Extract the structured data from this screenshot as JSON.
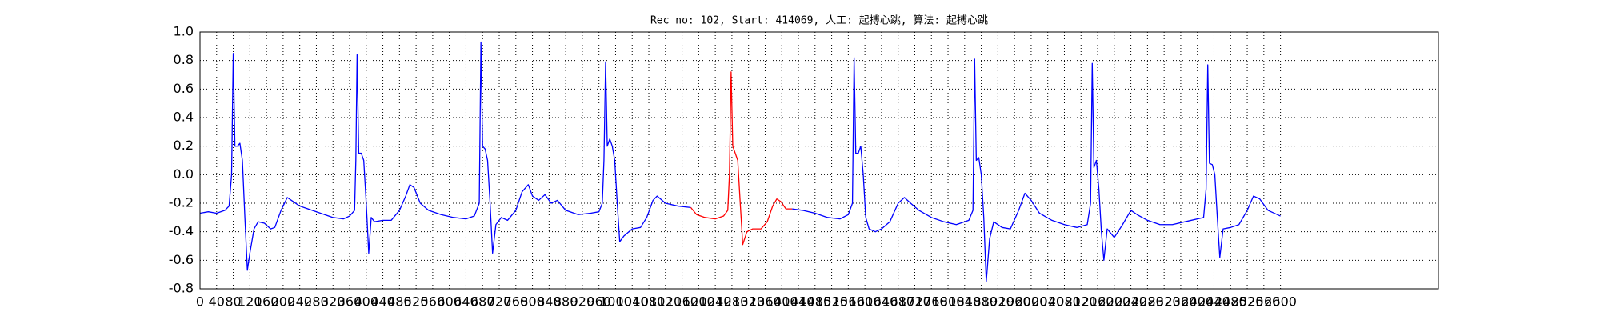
{
  "chart_data": {
    "type": "line",
    "title": "Rec_no: 102, Start: 414069, 人工: 起搏心跳, 算法: 起搏心跳",
    "xlim": [
      0,
      2980
    ],
    "ylim": [
      -0.8,
      1.0
    ],
    "xticks": [
      0,
      40,
      80,
      120,
      160,
      200,
      240,
      280,
      320,
      360,
      400,
      440,
      480,
      520,
      560,
      600,
      640,
      680,
      720,
      760,
      800,
      840,
      880,
      920,
      960,
      1000,
      1040,
      1080,
      1120,
      1160,
      1200,
      1240,
      1280,
      1320,
      1360,
      1400,
      1440,
      1480,
      1520,
      1560,
      1600,
      1640,
      1680,
      1720,
      1760,
      1800,
      1840,
      1880,
      1920,
      1960,
      2000,
      2040,
      2080,
      2120,
      2160,
      2200,
      2240,
      2280,
      2320,
      2360,
      2400,
      2440,
      2480,
      2520,
      2560,
      2600
    ],
    "yticks": [
      -0.8,
      -0.6,
      -0.4,
      -0.2,
      {
        "value": 0,
        "label": "0.0"
      },
      0.2,
      0.4,
      0.6,
      0.8,
      {
        "value": 1,
        "label": "1.0"
      }
    ],
    "grid": true,
    "series": [
      {
        "color": "#0000ff",
        "x": [
          0,
          20,
          40,
          60,
          70,
          76,
          80,
          84,
          90,
          96,
          102,
          108,
          114,
          120,
          130,
          140,
          155,
          170,
          180,
          195,
          210,
          225,
          240,
          260,
          290,
          320,
          345,
          360,
          372,
          375,
          378,
          382,
          388,
          394,
          400,
          406,
          412,
          420,
          440,
          460,
          480,
          495,
          505,
          515,
          530,
          550,
          580,
          610,
          640,
          660,
          672,
          676,
          680,
          686,
          692,
          698,
          704,
          712,
          725,
          740,
          760,
          775,
          790,
          800,
          815,
          830,
          845,
          860,
          880,
          910,
          940,
          960,
          968,
          972,
          976,
          980,
          986,
          992,
          998,
          1004,
          1010,
          1020,
          1040,
          1060,
          1075,
          1090,
          1100,
          1120,
          1150,
          1181
        ],
        "values": [
          -0.27,
          -0.26,
          -0.27,
          -0.25,
          -0.22,
          0.0,
          0.85,
          0.2,
          0.2,
          0.22,
          0.1,
          -0.3,
          -0.67,
          -0.55,
          -0.38,
          -0.33,
          -0.34,
          -0.38,
          -0.37,
          -0.25,
          -0.16,
          -0.19,
          -0.22,
          -0.24,
          -0.27,
          -0.3,
          -0.31,
          -0.29,
          -0.25,
          0.1,
          0.84,
          0.15,
          0.15,
          0.1,
          -0.2,
          -0.55,
          -0.3,
          -0.33,
          -0.32,
          -0.32,
          -0.25,
          -0.15,
          -0.07,
          -0.09,
          -0.2,
          -0.25,
          -0.28,
          -0.3,
          -0.31,
          -0.29,
          -0.2,
          0.93,
          0.2,
          0.18,
          0.1,
          -0.2,
          -0.55,
          -0.35,
          -0.3,
          -0.32,
          -0.25,
          -0.12,
          -0.07,
          -0.15,
          -0.18,
          -0.14,
          -0.2,
          -0.18,
          -0.25,
          -0.28,
          -0.27,
          -0.26,
          -0.2,
          0.1,
          0.79,
          0.2,
          0.25,
          0.2,
          0.1,
          -0.2,
          -0.47,
          -0.43,
          -0.38,
          -0.37,
          -0.3,
          -0.18,
          -0.15,
          -0.2,
          -0.22,
          -0.23
        ]
      },
      {
        "color": "#ff0000",
        "x": [
          1181,
          1195,
          1215,
          1240,
          1260,
          1270,
          1274,
          1278,
          1282,
          1288,
          1294,
          1300,
          1306,
          1316,
          1330,
          1350,
          1365,
          1378,
          1388,
          1398,
          1410,
          1425
        ],
        "values": [
          -0.23,
          -0.28,
          -0.3,
          -0.31,
          -0.29,
          -0.25,
          0.0,
          0.72,
          0.2,
          0.15,
          0.1,
          -0.2,
          -0.49,
          -0.4,
          -0.38,
          -0.38,
          -0.33,
          -0.22,
          -0.17,
          -0.19,
          -0.24,
          -0.24
        ]
      },
      {
        "color": "#0000ff",
        "x": [
          1425,
          1450,
          1480,
          1510,
          1540,
          1560,
          1570,
          1574,
          1578,
          1584,
          1590,
          1596,
          1602,
          1610,
          1625,
          1640,
          1660,
          1680,
          1695,
          1710,
          1730,
          1760,
          1790,
          1820,
          1850,
          1860,
          1864,
          1868,
          1874,
          1880,
          1886,
          1892,
          1900,
          1910,
          1930,
          1950,
          1970,
          1985,
          2000,
          2020,
          2050,
          2080,
          2110,
          2135,
          2143,
          2147,
          2151,
          2157,
          2163,
          2169,
          2175,
          2183,
          2200,
          2220,
          2240,
          2255,
          2280,
          2310,
          2340,
          2370,
          2415,
          2421,
          2425,
          2429,
          2436,
          2442,
          2448,
          2454,
          2462,
          2480,
          2500,
          2520,
          2535,
          2550,
          2570,
          2600
        ],
        "values": [
          -0.24,
          -0.25,
          -0.27,
          -0.3,
          -0.31,
          -0.28,
          -0.2,
          0.82,
          0.15,
          0.15,
          0.2,
          0.0,
          -0.3,
          -0.38,
          -0.4,
          -0.38,
          -0.33,
          -0.2,
          -0.16,
          -0.2,
          -0.25,
          -0.3,
          -0.33,
          -0.35,
          -0.32,
          -0.25,
          0.81,
          0.1,
          0.12,
          0.0,
          -0.3,
          -0.75,
          -0.45,
          -0.33,
          -0.37,
          -0.38,
          -0.25,
          -0.13,
          -0.18,
          -0.27,
          -0.32,
          -0.35,
          -0.37,
          -0.35,
          -0.2,
          0.78,
          0.05,
          0.1,
          -0.1,
          -0.4,
          -0.6,
          -0.38,
          -0.44,
          -0.35,
          -0.25,
          -0.28,
          -0.32,
          -0.35,
          -0.35,
          -0.33,
          -0.3,
          -0.1,
          0.77,
          0.08,
          0.07,
          0.0,
          -0.3,
          -0.58,
          -0.38,
          -0.37,
          -0.35,
          -0.25,
          -0.15,
          -0.17,
          -0.25,
          -0.29
        ]
      }
    ]
  }
}
